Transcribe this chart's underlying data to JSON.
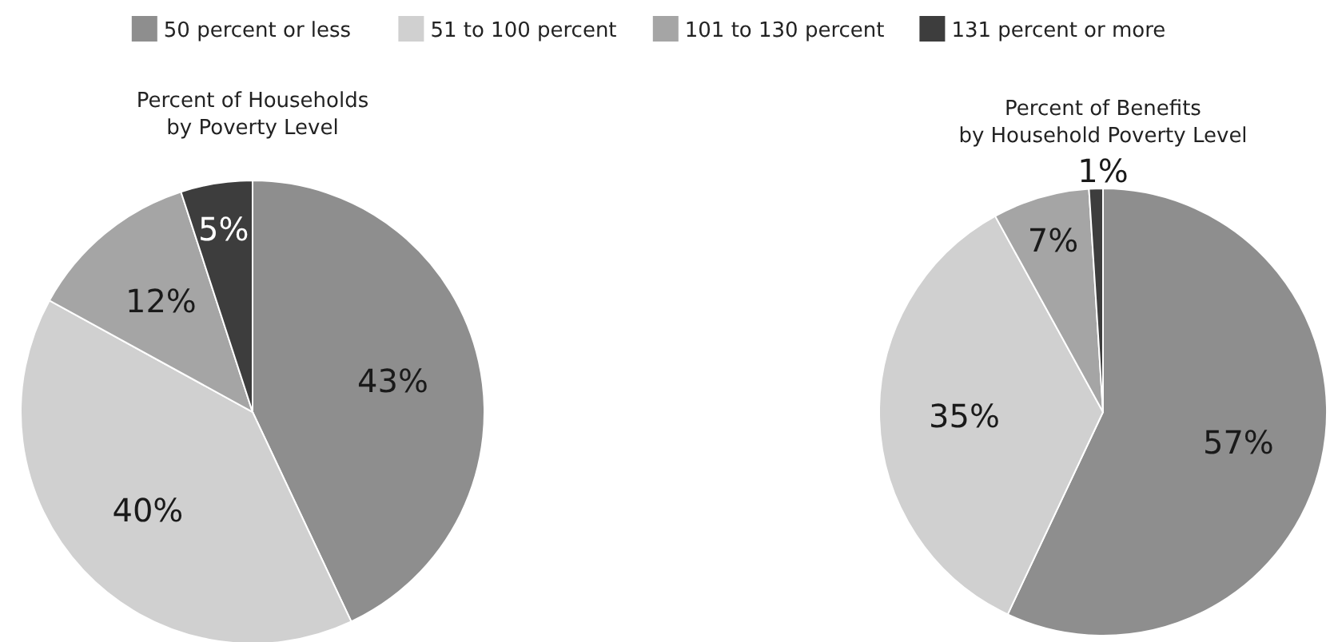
{
  "chart_data": [
    {
      "type": "pie",
      "title": "Percent of Households\nby Poverty Level",
      "categories": [
        "50 percent or less",
        "51 to 100 percent",
        "101 to 130 percent",
        "131 percent or more"
      ],
      "values": [
        43,
        40,
        12,
        5
      ],
      "value_labels": [
        "43%",
        "40%",
        "12%",
        "5%"
      ],
      "colors": [
        "#8e8e8e",
        "#d0d0d0",
        "#a5a5a5",
        "#3d3d3d"
      ],
      "legend": "top"
    },
    {
      "type": "pie",
      "title": "Percent of Benefits\nby Household Poverty Level",
      "categories": [
        null,
        null,
        null,
        null
      ],
      "values": [
        57,
        35,
        7,
        1
      ],
      "value_labels": [
        "57%",
        "35%",
        "7%",
        "1%"
      ],
      "colors": [
        "#8e8e8e",
        "#d0d0d0",
        "#a5a5a5",
        "#3d3d3d"
      ]
    }
  ]
}
